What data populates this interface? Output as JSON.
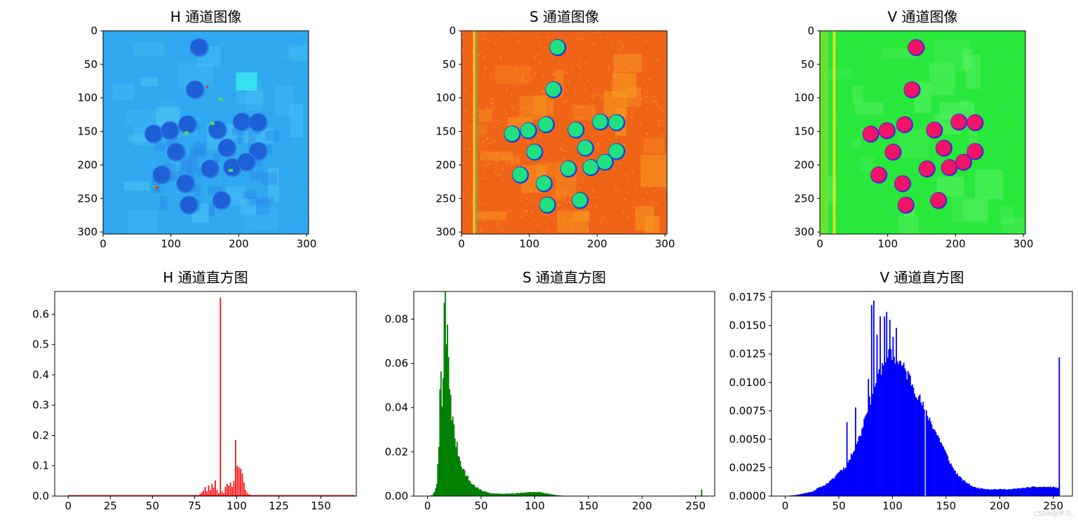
{
  "watermark": "CSDN@学习_",
  "images": [
    {
      "title": "H 通道图像",
      "xticks": [
        0,
        100,
        200,
        300
      ],
      "yticks": [
        0,
        50,
        100,
        150,
        200,
        250,
        300
      ],
      "range": [
        0,
        303
      ],
      "colormap": "hue",
      "palette": {
        "background": "#2fa8f0",
        "bg_alt": "#4cc3f5",
        "blob": "#1e5fd6",
        "blob_edge": "#2b7fe8",
        "accent_cyan": "#38e8f0",
        "accent_green": "#50e05a",
        "accent_red": "#e8282e"
      }
    },
    {
      "title": "S 通道图像",
      "xticks": [
        0,
        100,
        200,
        300
      ],
      "yticks": [
        0,
        50,
        100,
        150,
        200,
        250,
        300
      ],
      "range": [
        0,
        303
      ],
      "colormap": "hsv",
      "palette": {
        "background": "#f06418",
        "bg_alt": "#f89a20",
        "speckle": "#f8d030",
        "blob": "#20e080",
        "blob_edge": "#1040e0"
      }
    },
    {
      "title": "V 通道图像",
      "xticks": [
        0,
        100,
        200,
        300
      ],
      "yticks": [
        0,
        50,
        100,
        150,
        200,
        250,
        300
      ],
      "range": [
        0,
        303
      ],
      "colormap": "hsv",
      "palette": {
        "background": "#28e83a",
        "bg_alt": "#58f060",
        "speckle": "#28c8e8",
        "blob": "#f01468",
        "blob_edge": "#5020d0"
      }
    }
  ],
  "blobs": [
    [
      142,
      25
    ],
    [
      136,
      88
    ],
    [
      75,
      154
    ],
    [
      99,
      149
    ],
    [
      125,
      140
    ],
    [
      169,
      148
    ],
    [
      205,
      136
    ],
    [
      229,
      137
    ],
    [
      108,
      181
    ],
    [
      183,
      175
    ],
    [
      229,
      180
    ],
    [
      87,
      215
    ],
    [
      122,
      228
    ],
    [
      158,
      206
    ],
    [
      191,
      204
    ],
    [
      212,
      196
    ],
    [
      127,
      260
    ],
    [
      175,
      253
    ]
  ],
  "chart_data": [
    {
      "type": "bar",
      "title": "H 通道直方图",
      "color": "#ff0000",
      "xlim": [
        -8,
        171
      ],
      "ylim": [
        0,
        0.675
      ],
      "xticks": [
        0,
        25,
        50,
        75,
        100,
        125,
        150
      ],
      "yticks": [
        "0.0",
        "0.1",
        "0.2",
        "0.3",
        "0.4",
        "0.5",
        "0.6"
      ],
      "ytick_values": [
        0,
        0.1,
        0.2,
        0.3,
        0.4,
        0.5,
        0.6
      ],
      "baseline": 0.002,
      "bins": [
        [
          78,
          0.008
        ],
        [
          79,
          0.012
        ],
        [
          80,
          0.018
        ],
        [
          81,
          0.03
        ],
        [
          82,
          0.015
        ],
        [
          83,
          0.035
        ],
        [
          84,
          0.02
        ],
        [
          85,
          0.04
        ],
        [
          86,
          0.028
        ],
        [
          87,
          0.052
        ],
        [
          88,
          0.02
        ],
        [
          89,
          0.01
        ],
        [
          90,
          0.655
        ],
        [
          91,
          0.015
        ],
        [
          92,
          0.01
        ],
        [
          93,
          0.03
        ],
        [
          94,
          0.04
        ],
        [
          95,
          0.035
        ],
        [
          96,
          0.045
        ],
        [
          97,
          0.03
        ],
        [
          98,
          0.05
        ],
        [
          99,
          0.185
        ],
        [
          100,
          0.1
        ],
        [
          101,
          0.095
        ],
        [
          102,
          0.09
        ],
        [
          103,
          0.075
        ],
        [
          104,
          0.045
        ],
        [
          105,
          0.02
        ],
        [
          106,
          0.01
        ],
        [
          107,
          0.006
        ],
        [
          108,
          0.004
        ]
      ]
    },
    {
      "type": "bar",
      "title": "S 通道直方图",
      "color": "#008000",
      "xlim": [
        -12.8,
        267.8
      ],
      "ylim": [
        0,
        0.0925
      ],
      "xticks": [
        0,
        50,
        100,
        150,
        200,
        250
      ],
      "yticks": [
        "0.00",
        "0.02",
        "0.04",
        "0.06",
        "0.08"
      ],
      "ytick_values": [
        0,
        0.02,
        0.04,
        0.06,
        0.08
      ],
      "shape": {
        "points": [
          [
            0,
            0.0
          ],
          [
            4,
            0.0005
          ],
          [
            6,
            0.002
          ],
          [
            8,
            0.006
          ],
          [
            10,
            0.02
          ],
          [
            11,
            0.048
          ],
          [
            12,
            0.057
          ],
          [
            13,
            0.04
          ],
          [
            14,
            0.052
          ],
          [
            15,
            0.082
          ],
          [
            16,
            0.092
          ],
          [
            17,
            0.07
          ],
          [
            18,
            0.078
          ],
          [
            19,
            0.058
          ],
          [
            20,
            0.05
          ],
          [
            21,
            0.046
          ],
          [
            22,
            0.038
          ],
          [
            24,
            0.03
          ],
          [
            26,
            0.024
          ],
          [
            28,
            0.02
          ],
          [
            30,
            0.016
          ],
          [
            33,
            0.012
          ],
          [
            36,
            0.009
          ],
          [
            40,
            0.006
          ],
          [
            45,
            0.004
          ],
          [
            50,
            0.0025
          ],
          [
            55,
            0.0018
          ],
          [
            60,
            0.0012
          ],
          [
            70,
            0.001
          ],
          [
            80,
            0.0012
          ],
          [
            90,
            0.0016
          ],
          [
            95,
            0.0018
          ],
          [
            100,
            0.0019
          ],
          [
            105,
            0.0017
          ],
          [
            110,
            0.0012
          ],
          [
            115,
            0.0008
          ],
          [
            120,
            0.0004
          ],
          [
            125,
            0.0002
          ],
          [
            130,
            0.0001
          ],
          [
            140,
            0.0001
          ],
          [
            200,
            0.0001
          ],
          [
            250,
            0.0002
          ],
          [
            254,
            0.0002
          ],
          [
            255,
            0.003
          ]
        ],
        "jitter": 0.12,
        "seed": 7
      }
    },
    {
      "type": "bar",
      "title": "V 通道直方图",
      "color": "#0000ff",
      "xlim": [
        -12.8,
        267.8
      ],
      "ylim": [
        0,
        0.018
      ],
      "xticks": [
        0,
        50,
        100,
        150,
        200,
        250
      ],
      "yticks": [
        "0.0000",
        "0.0025",
        "0.0050",
        "0.0075",
        "0.0100",
        "0.0125",
        "0.0150",
        "0.0175"
      ],
      "ytick_values": [
        0,
        0.0025,
        0.005,
        0.0075,
        0.01,
        0.0125,
        0.015,
        0.0175
      ],
      "shape": {
        "points": [
          [
            0,
            0.0
          ],
          [
            10,
            0.0001
          ],
          [
            15,
            0.0002
          ],
          [
            20,
            0.0003
          ],
          [
            25,
            0.0004
          ],
          [
            30,
            0.0007
          ],
          [
            35,
            0.0009
          ],
          [
            40,
            0.0012
          ],
          [
            45,
            0.0016
          ],
          [
            50,
            0.0022
          ],
          [
            55,
            0.0025
          ],
          [
            60,
            0.0033
          ],
          [
            65,
            0.0045
          ],
          [
            70,
            0.0055
          ],
          [
            75,
            0.0075
          ],
          [
            80,
            0.0088
          ],
          [
            85,
            0.0105
          ],
          [
            90,
            0.0115
          ],
          [
            95,
            0.0122
          ],
          [
            100,
            0.0124
          ],
          [
            105,
            0.012
          ],
          [
            110,
            0.0112
          ],
          [
            115,
            0.0105
          ],
          [
            120,
            0.0095
          ],
          [
            125,
            0.0085
          ],
          [
            130,
            0.0075
          ],
          [
            135,
            0.0066
          ],
          [
            140,
            0.0056
          ],
          [
            145,
            0.0047
          ],
          [
            150,
            0.0036
          ],
          [
            155,
            0.0026
          ],
          [
            160,
            0.0019
          ],
          [
            165,
            0.0014
          ],
          [
            170,
            0.0011
          ],
          [
            175,
            0.0008
          ],
          [
            180,
            0.0007
          ],
          [
            190,
            0.0006
          ],
          [
            200,
            0.0006
          ],
          [
            210,
            0.0006
          ],
          [
            220,
            0.0007
          ],
          [
            230,
            0.0008
          ],
          [
            240,
            0.0008
          ],
          [
            250,
            0.0008
          ],
          [
            254,
            0.0007
          ],
          [
            255,
            0.0122
          ]
        ],
        "jitter": 0.06,
        "seed": 11
      },
      "spikes": [
        [
          57,
          0.0065
        ],
        [
          65,
          0.0078
        ],
        [
          77,
          0.0103
        ],
        [
          80,
          0.0168
        ],
        [
          82,
          0.0172
        ],
        [
          85,
          0.0142
        ],
        [
          88,
          0.0158
        ],
        [
          92,
          0.0158
        ],
        [
          94,
          0.0162
        ],
        [
          97,
          0.0155
        ],
        [
          100,
          0.014
        ],
        [
          103,
          0.0148
        ]
      ],
      "gaps": [
        130
      ]
    }
  ]
}
